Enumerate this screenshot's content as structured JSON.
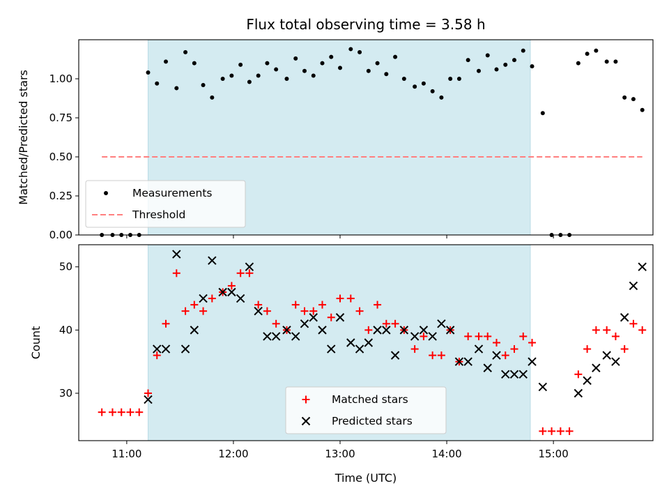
{
  "chart_data": [
    {
      "type": "scatter",
      "title": "Flux total observing time = 3.58 h",
      "xlabel": "",
      "ylabel": "Matched/Predicted stars",
      "ylim": [
        0,
        1.25
      ],
      "xlim": [
        "10:33",
        "15:56"
      ],
      "yticks": [
        "0.00",
        "0.25",
        "0.50",
        "0.75",
        "1.00"
      ],
      "shaded_interval": [
        "11:12",
        "14:47"
      ],
      "shade_color": "#d4ebf1",
      "legend_position": "lower-left",
      "series": [
        {
          "name": "Measurements",
          "marker": "dot",
          "color": "#000000",
          "points": [
            [
              "10:46",
              0
            ],
            [
              "10:52",
              0
            ],
            [
              "10:57",
              0
            ],
            [
              "11:02",
              0
            ],
            [
              "11:07",
              0
            ],
            [
              "11:12",
              1.04
            ],
            [
              "11:17",
              0.97
            ],
            [
              "11:22",
              1.11
            ],
            [
              "11:28",
              0.94
            ],
            [
              "11:33",
              1.17
            ],
            [
              "11:38",
              1.1
            ],
            [
              "11:43",
              0.96
            ],
            [
              "11:48",
              0.88
            ],
            [
              "11:54",
              1.0
            ],
            [
              "11:59",
              1.02
            ],
            [
              "12:04",
              1.09
            ],
            [
              "12:09",
              0.98
            ],
            [
              "12:14",
              1.02
            ],
            [
              "12:19",
              1.1
            ],
            [
              "12:24",
              1.06
            ],
            [
              "12:30",
              1.0
            ],
            [
              "12:35",
              1.13
            ],
            [
              "12:40",
              1.05
            ],
            [
              "12:45",
              1.02
            ],
            [
              "12:50",
              1.1
            ],
            [
              "12:55",
              1.14
            ],
            [
              "13:00",
              1.07
            ],
            [
              "13:06",
              1.19
            ],
            [
              "13:11",
              1.17
            ],
            [
              "13:16",
              1.05
            ],
            [
              "13:21",
              1.1
            ],
            [
              "13:26",
              1.03
            ],
            [
              "13:31",
              1.14
            ],
            [
              "13:36",
              1.0
            ],
            [
              "13:42",
              0.95
            ],
            [
              "13:47",
              0.97
            ],
            [
              "13:52",
              0.92
            ],
            [
              "13:57",
              0.88
            ],
            [
              "14:02",
              1.0
            ],
            [
              "14:07",
              1.0
            ],
            [
              "14:12",
              1.12
            ],
            [
              "14:18",
              1.05
            ],
            [
              "14:23",
              1.15
            ],
            [
              "14:28",
              1.06
            ],
            [
              "14:33",
              1.09
            ],
            [
              "14:38",
              1.12
            ],
            [
              "14:43",
              1.18
            ],
            [
              "14:48",
              1.08
            ],
            [
              "14:54",
              0.78
            ],
            [
              "14:59",
              0
            ],
            [
              "15:04",
              0
            ],
            [
              "15:09",
              0
            ],
            [
              "15:14",
              1.1
            ],
            [
              "15:19",
              1.16
            ],
            [
              "15:24",
              1.18
            ],
            [
              "15:30",
              1.11
            ],
            [
              "15:35",
              1.11
            ],
            [
              "15:40",
              0.88
            ],
            [
              "15:45",
              0.87
            ],
            [
              "15:50",
              0.8
            ]
          ]
        },
        {
          "name": "Threshold",
          "marker": "dashed-line",
          "color": "#ff7f7f",
          "points": [
            [
              "10:46",
              0.5
            ],
            [
              "15:50",
              0.5
            ]
          ]
        }
      ]
    },
    {
      "type": "scatter",
      "title": "",
      "xlabel": "Time (UTC)",
      "ylabel": "Count",
      "ylim": [
        22.5,
        53.5
      ],
      "xlim": [
        "10:33",
        "15:56"
      ],
      "yticks": [
        "30",
        "40",
        "50"
      ],
      "xticks": [
        "11:00",
        "12:00",
        "13:00",
        "14:00",
        "15:00"
      ],
      "shaded_interval": [
        "11:12",
        "14:47"
      ],
      "shade_color": "#d4ebf1",
      "legend_position": "lower-center",
      "x": [
        "10:46",
        "10:52",
        "10:57",
        "11:02",
        "11:07",
        "11:12",
        "11:17",
        "11:22",
        "11:28",
        "11:33",
        "11:38",
        "11:43",
        "11:48",
        "11:54",
        "11:59",
        "12:04",
        "12:09",
        "12:14",
        "12:19",
        "12:24",
        "12:30",
        "12:35",
        "12:40",
        "12:45",
        "12:50",
        "12:55",
        "13:00",
        "13:06",
        "13:11",
        "13:16",
        "13:21",
        "13:26",
        "13:31",
        "13:36",
        "13:42",
        "13:47",
        "13:52",
        "13:57",
        "14:02",
        "14:07",
        "14:12",
        "14:18",
        "14:23",
        "14:28",
        "14:33",
        "14:38",
        "14:43",
        "14:48",
        "14:54",
        "14:59",
        "15:04",
        "15:09",
        "15:14",
        "15:19",
        "15:24",
        "15:30",
        "15:35",
        "15:40",
        "15:45",
        "15:50"
      ],
      "series": [
        {
          "name": "Matched stars",
          "marker": "plus",
          "color": "#ff0000",
          "values": [
            27,
            27,
            27,
            27,
            27,
            30,
            36,
            41,
            49,
            43,
            44,
            43,
            45,
            46,
            47,
            49,
            49,
            44,
            43,
            41,
            40,
            44,
            43,
            43,
            44,
            42,
            45,
            45,
            43,
            40,
            44,
            41,
            41,
            40,
            37,
            39,
            36,
            36,
            40,
            35,
            39,
            39,
            39,
            38,
            36,
            37,
            39,
            38,
            24,
            24,
            24,
            24,
            33,
            37,
            40,
            40,
            39,
            37,
            41,
            40
          ]
        },
        {
          "name": "Predicted stars",
          "marker": "x",
          "color": "#000000",
          "values": [
            null,
            null,
            null,
            null,
            null,
            29,
            37,
            37,
            52,
            37,
            40,
            45,
            51,
            46,
            46,
            45,
            50,
            43,
            39,
            39,
            40,
            39,
            41,
            42,
            40,
            37,
            42,
            38,
            37,
            38,
            40,
            40,
            36,
            40,
            39,
            40,
            39,
            41,
            40,
            35,
            35,
            37,
            34,
            36,
            33,
            33,
            33,
            35,
            31,
            null,
            null,
            null,
            30,
            32,
            34,
            36,
            35,
            42,
            47,
            50
          ]
        }
      ]
    }
  ]
}
